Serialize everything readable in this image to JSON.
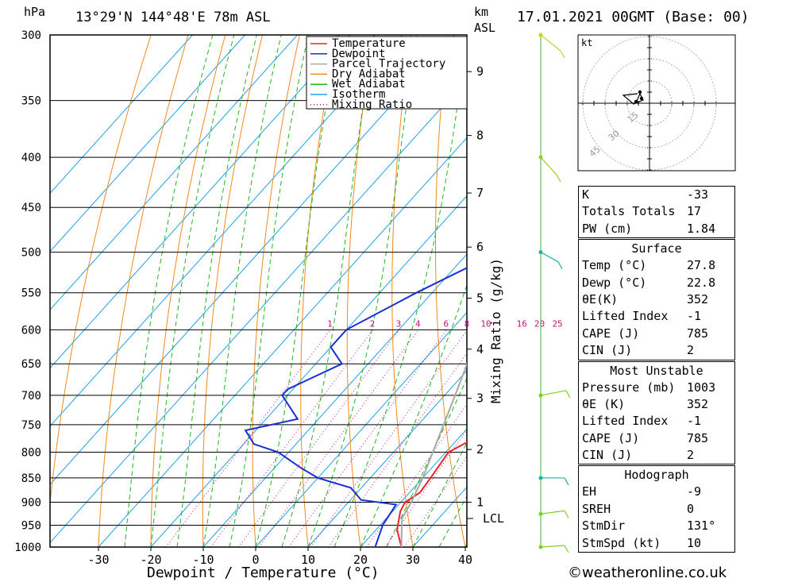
{
  "header": {
    "pressure_unit": "hPa",
    "location": "13°29'N  144°48'E  78m  ASL",
    "height_unit": "km",
    "height_unit2": "ASL",
    "datetime": "17.01.2021  00GMT  (Base: 00)"
  },
  "chart_data": {
    "type": "line",
    "title": "Skew-T log-P diagram",
    "xlabel": "Dewpoint / Temperature (°C)",
    "ylabel": "hPa",
    "x_ticks": [
      -30,
      -20,
      -10,
      0,
      10,
      20,
      30,
      40
    ],
    "pressure_levels": [
      300,
      350,
      400,
      450,
      500,
      550,
      600,
      650,
      700,
      750,
      800,
      850,
      900,
      950,
      1000
    ],
    "km_ticks": [
      {
        "label": "9",
        "p": 327
      },
      {
        "label": "8",
        "p": 380
      },
      {
        "label": "7",
        "p": 435
      },
      {
        "label": "6",
        "p": 494
      },
      {
        "label": "5",
        "p": 557
      },
      {
        "label": "4",
        "p": 628
      },
      {
        "label": "3",
        "p": 705
      },
      {
        "label": "2",
        "p": 795
      },
      {
        "label": "1",
        "p": 900
      }
    ],
    "lcl": {
      "label": "LCL",
      "p": 935
    },
    "mixing_ratio_label": "Mixing Ratio (g/kg)",
    "mixing_ratio_values": [
      1,
      2,
      3,
      4,
      6,
      8,
      10,
      16,
      20,
      25
    ],
    "legend": [
      "Temperature",
      "Dewpoint",
      "Parcel Trajectory",
      "Dry Adiabat",
      "Wet Adiabat",
      "Isotherm",
      "Mixing Ratio"
    ],
    "series": [
      {
        "name": "Temperature",
        "points": [
          [
            1000,
            27.8
          ],
          [
            960,
            24
          ],
          [
            920,
            21.5
          ],
          [
            900,
            20.8
          ],
          [
            880,
            22
          ],
          [
            850,
            21.5
          ],
          [
            800,
            20.5
          ],
          [
            770,
            23.5
          ],
          [
            750,
            21.5
          ],
          [
            700,
            17
          ],
          [
            660,
            14.5
          ],
          [
            640,
            13.5
          ],
          [
            600,
            10
          ],
          [
            560,
            5
          ],
          [
            520,
            -1
          ],
          [
            500,
            -4
          ],
          [
            480,
            -5
          ],
          [
            450,
            -8
          ],
          [
            400,
            -14.5
          ],
          [
            370,
            -19
          ]
        ]
      },
      {
        "name": "Dewpoint",
        "points": [
          [
            1000,
            22.8
          ],
          [
            950,
            20.5
          ],
          [
            905,
            19.5
          ],
          [
            895,
            12
          ],
          [
            870,
            8
          ],
          [
            850,
            0
          ],
          [
            830,
            -5
          ],
          [
            800,
            -12
          ],
          [
            785,
            -18
          ],
          [
            760,
            -22
          ],
          [
            740,
            -14
          ],
          [
            700,
            -21
          ],
          [
            690,
            -21
          ],
          [
            650,
            -15
          ],
          [
            625,
            -20
          ],
          [
            600,
            -20
          ],
          [
            550,
            -13
          ],
          [
            515,
            -7
          ],
          [
            500,
            -10
          ],
          [
            450,
            -10.5
          ],
          [
            400,
            -10
          ],
          [
            392,
            -10
          ],
          [
            350,
            -6
          ],
          [
            340,
            -5
          ],
          [
            330,
            -7
          ],
          [
            328,
            8
          ],
          [
            300,
            0
          ]
        ]
      },
      {
        "name": "Parcel Trajectory",
        "points": [
          [
            1000,
            27.8
          ],
          [
            935,
            23
          ],
          [
            900,
            22
          ],
          [
            850,
            20
          ],
          [
            800,
            17.5
          ],
          [
            700,
            12
          ],
          [
            600,
            5.5
          ],
          [
            500,
            -3
          ],
          [
            450,
            -8
          ],
          [
            400,
            -14
          ],
          [
            380,
            -16.5
          ]
        ]
      }
    ]
  },
  "indices": {
    "rows": [
      {
        "label": "K",
        "value": "-33"
      },
      {
        "label": "Totals Totals",
        "value": "17"
      },
      {
        "label": "PW (cm)",
        "value": "1.84"
      }
    ]
  },
  "surface": {
    "title": "Surface",
    "rows": [
      {
        "label": "Temp (°C)",
        "value": "27.8"
      },
      {
        "label": "Dewp (°C)",
        "value": "22.8"
      },
      {
        "label": "θE(K)",
        "value": "352"
      },
      {
        "label": "Lifted Index",
        "value": "-1"
      },
      {
        "label": "CAPE (J)",
        "value": "785"
      },
      {
        "label": "CIN (J)",
        "value": "2"
      }
    ]
  },
  "most_unstable": {
    "title": "Most Unstable",
    "rows": [
      {
        "label": "Pressure (mb)",
        "value": "1003"
      },
      {
        "label": "θE (K)",
        "value": "352"
      },
      {
        "label": "Lifted Index",
        "value": "-1"
      },
      {
        "label": "CAPE (J)",
        "value": "785"
      },
      {
        "label": "CIN (J)",
        "value": "2"
      }
    ]
  },
  "hodograph_table": {
    "title": "Hodograph",
    "rows": [
      {
        "label": "EH",
        "value": "-9"
      },
      {
        "label": "SREH",
        "value": "0"
      },
      {
        "label": "StmDir",
        "value": "131°"
      },
      {
        "label": "StmSpd (kt)",
        "value": "10"
      }
    ]
  },
  "hodograph": {
    "unit_label": "kt",
    "ring_labels": [
      "15",
      "30",
      "45"
    ]
  },
  "credit": "©weatheronline.co.uk",
  "colors": {
    "temperature": "#e8242b",
    "dewpoint": "#1a2fd6",
    "parcel": "#a8a8a8",
    "dry_adiabat": "#f08a1a",
    "wet_adiabat": "#1fb51f",
    "isotherm": "#1fa0e8",
    "mixing_ratio": "#d0157a",
    "wind": "#80d020"
  }
}
